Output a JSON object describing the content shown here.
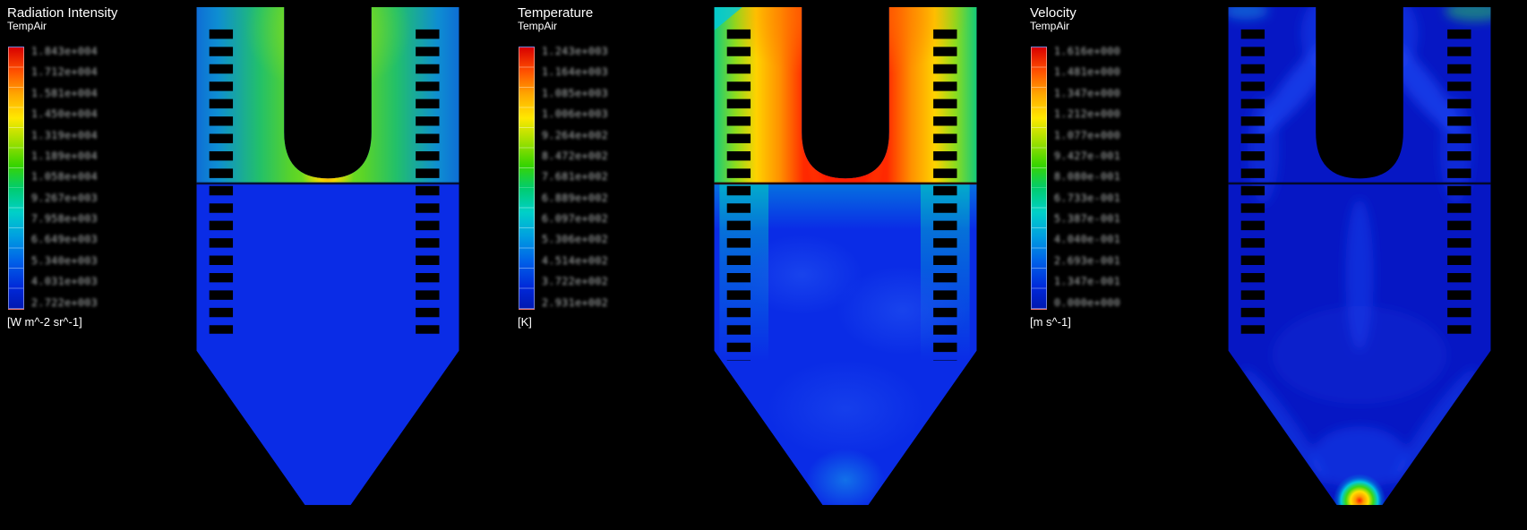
{
  "viewport": {
    "background": "#000000",
    "legend_position": "left"
  },
  "panels": [
    {
      "title": "Radiation Intensity",
      "subtitle": "TempAir",
      "units": "[W m^-2 sr^-1]",
      "colorbar_ticks": [
        "1.843e+004",
        "1.712e+004",
        "1.581e+004",
        "1.450e+004",
        "1.319e+004",
        "1.189e+004",
        "1.058e+004",
        "9.267e+003",
        "7.958e+003",
        "6.649e+003",
        "5.340e+003",
        "4.031e+003",
        "2.722e+003"
      ]
    },
    {
      "title": "Temperature",
      "subtitle": "TempAir",
      "units": "[K]",
      "colorbar_ticks": [
        "1.243e+003",
        "1.164e+003",
        "1.085e+003",
        "1.006e+003",
        "9.264e+002",
        "8.472e+002",
        "7.681e+002",
        "6.889e+002",
        "6.097e+002",
        "5.306e+002",
        "4.514e+002",
        "3.722e+002",
        "2.931e+002"
      ]
    },
    {
      "title": "Velocity",
      "subtitle": "TempAir",
      "units": "[m s^-1]",
      "colorbar_ticks": [
        "1.616e+000",
        "1.481e+000",
        "1.347e+000",
        "1.212e+000",
        "1.077e+000",
        "9.427e-001",
        "8.080e-001",
        "6.733e-001",
        "5.387e-001",
        "4.040e-001",
        "2.693e-001",
        "1.347e-001",
        "0.000e+000"
      ]
    }
  ],
  "chart_data": [
    {
      "type": "heatmap",
      "title": "Radiation Intensity",
      "series_label": "TempAir",
      "units": "W m^-2 sr^-1",
      "colormap": "rainbow (red = high, blue = low)",
      "colormap_stops": [
        "#d80000",
        "#ff7a00",
        "#ffe800",
        "#38d400",
        "#00d0c8",
        "#0060e8",
        "#0018b0"
      ],
      "legend_ticks": [
        "1.843e+004",
        "1.712e+004",
        "1.581e+004",
        "1.450e+004",
        "1.319e+004",
        "1.189e+004",
        "1.058e+004",
        "9.267e+003",
        "7.958e+003",
        "6.649e+003",
        "5.340e+003",
        "4.031e+003",
        "2.722e+003"
      ],
      "tick_labels_blurred": true,
      "field_summary": "Boiler cross-section: green/yellow-green intensity concentrated around the top U-shaped crown with a small orange peak at the crown tip; cyan-blue upper side walls and tube-bank regions; uniform blue (low intensity) everywhere below the arch line and through the hopper."
    },
    {
      "type": "heatmap",
      "title": "Temperature",
      "series_label": "TempAir",
      "units": "K",
      "colormap": "rainbow (red = high, blue = low)",
      "colormap_stops": [
        "#d80000",
        "#ff7a00",
        "#ffe800",
        "#38d400",
        "#00d0c8",
        "#0060e8",
        "#0018b0"
      ],
      "legend_ticks": [
        "1.243e+003",
        "1.164e+003",
        "1.085e+003",
        "1.006e+003",
        "9.264e+002",
        "8.472e+002",
        "7.681e+002",
        "6.889e+002",
        "6.097e+002",
        "5.306e+002",
        "4.514e+002",
        "3.722e+002",
        "2.931e+002"
      ],
      "tick_labels_blurred": true,
      "field_summary": "Hot red/orange gas fills the top of the furnace around the U-shaped crown, with a red plume reaching down to the arch line; yellow-green then cyan toward the side walls and dashed tube banks; cooler blue below the arch with lighter-blue recirculation patches and a faint cyan spot near the hopper tip."
    },
    {
      "type": "heatmap",
      "title": "Velocity",
      "series_label": "TempAir",
      "units": "m s^-1",
      "colormap": "rainbow (red = high, blue = low)",
      "colormap_stops": [
        "#d80000",
        "#ff7a00",
        "#ffe800",
        "#38d400",
        "#00d0c8",
        "#0060e8",
        "#0018b0"
      ],
      "legend_ticks": [
        "1.616e+000",
        "1.481e+000",
        "1.347e+000",
        "1.212e+000",
        "1.077e+000",
        "9.427e-001",
        "8.080e-001",
        "6.733e-001",
        "5.387e-001",
        "4.040e-001",
        "2.693e-001",
        "1.347e-001",
        "0.000e+000"
      ],
      "tick_labels_blurred": true,
      "field_summary": "Mostly low velocity (dark blue) with faint lighter-blue streaks arcing from the crown outward along the walls and a thin streak below the arch; a small high-velocity jet (red core with yellow, green and cyan rings) at the bottom hopper outlet; slight green tint at the top-right wall."
    }
  ]
}
